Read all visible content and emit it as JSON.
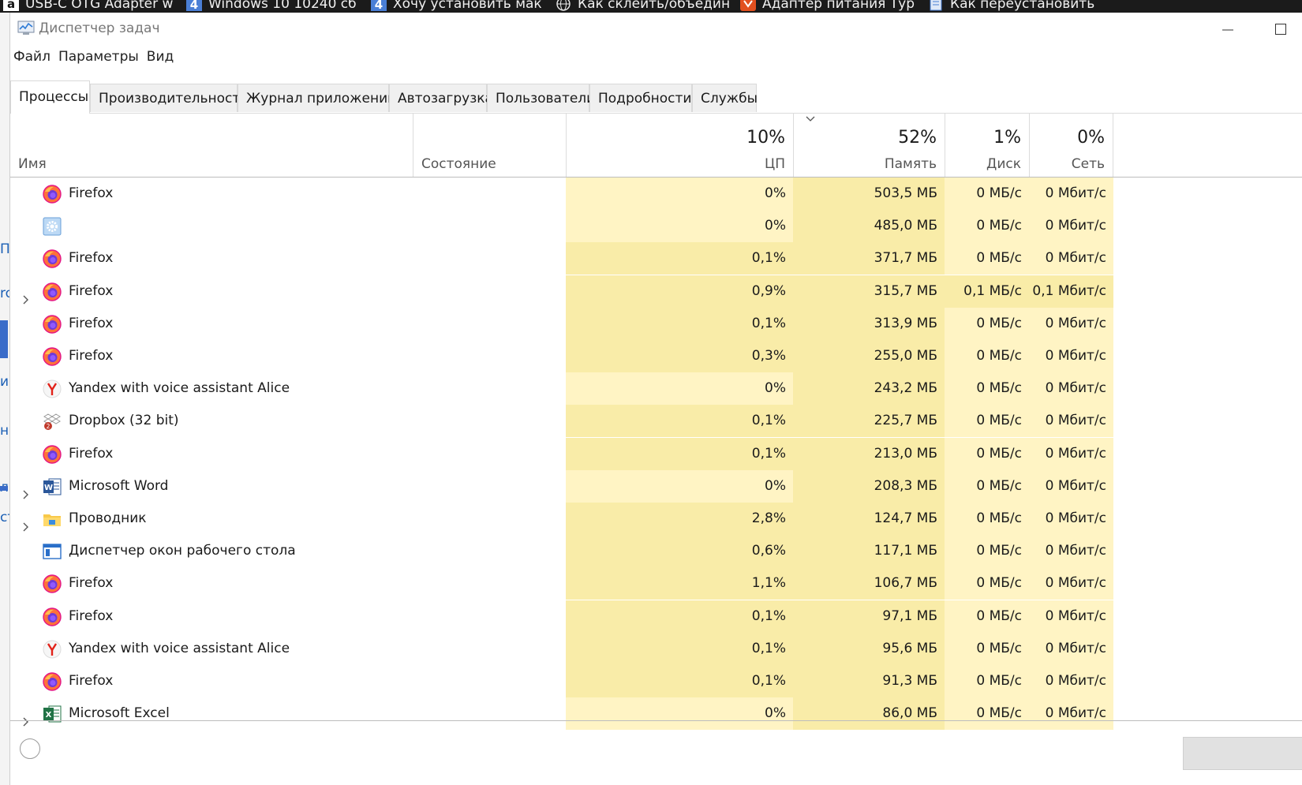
{
  "background": {
    "taskbar_items": [
      {
        "label": "USB-C OTG Adapter w",
        "icon": "amazon-icon"
      },
      {
        "label": "Windows 10 10240 сб",
        "icon": "blue-a-icon"
      },
      {
        "label": "Хочу установить мак",
        "icon": "blue-a-icon"
      },
      {
        "label": "Как склеить/объедин",
        "icon": "globe-icon"
      },
      {
        "label": "Адаптер питания Тур",
        "icon": "orange-tag-icon"
      },
      {
        "label": "Как переустановить",
        "icon": "document-icon"
      }
    ],
    "left_fragments": [
      "П",
      "ro",
      "ие",
      "на",
      "л",
      "ст"
    ]
  },
  "window": {
    "title": "Диспетчер задач",
    "menu": [
      "Файл",
      "Параметры",
      "Вид"
    ],
    "tabs": [
      "Процессы",
      "Производительность",
      "Журнал приложений",
      "Автозагрузка",
      "Пользователи",
      "Подробности",
      "Службы"
    ],
    "active_tab": "Процессы"
  },
  "columns": {
    "name": "Имя",
    "state": "Состояние",
    "cpu": {
      "label": "ЦП",
      "total": "10%"
    },
    "memory": {
      "label": "Память",
      "total": "52%",
      "sorted": true
    },
    "disk": {
      "label": "Диск",
      "total": "1%"
    },
    "network": {
      "label": "Сеть",
      "total": "0%"
    }
  },
  "heat_colors": {
    "light": "#fff4c4",
    "medium": "#f9eca8"
  },
  "processes": [
    {
      "name": "Firefox",
      "icon": "firefox-icon",
      "expandable": false,
      "cpu": "0%",
      "memory": "503,5 МБ",
      "disk": "0 МБ/с",
      "network": "0 Мбит/с"
    },
    {
      "name": "",
      "icon": "gear-app-icon",
      "expandable": false,
      "cpu": "0%",
      "memory": "485,0 МБ",
      "disk": "0 МБ/с",
      "network": "0 Мбит/с"
    },
    {
      "name": "Firefox",
      "icon": "firefox-icon",
      "expandable": false,
      "cpu": "0,1%",
      "memory": "371,7 МБ",
      "disk": "0 МБ/с",
      "network": "0 Мбит/с"
    },
    {
      "name": "Firefox",
      "icon": "firefox-icon",
      "expandable": true,
      "cpu": "0,9%",
      "memory": "315,7 МБ",
      "disk": "0,1 МБ/с",
      "network": "0,1 Мбит/с"
    },
    {
      "name": "Firefox",
      "icon": "firefox-icon",
      "expandable": false,
      "cpu": "0,1%",
      "memory": "313,9 МБ",
      "disk": "0 МБ/с",
      "network": "0 Мбит/с"
    },
    {
      "name": "Firefox",
      "icon": "firefox-icon",
      "expandable": false,
      "cpu": "0,3%",
      "memory": "255,0 МБ",
      "disk": "0 МБ/с",
      "network": "0 Мбит/с"
    },
    {
      "name": "Yandex with voice assistant Alice",
      "icon": "yandex-icon",
      "expandable": false,
      "cpu": "0%",
      "memory": "243,2 МБ",
      "disk": "0 МБ/с",
      "network": "0 Мбит/с"
    },
    {
      "name": "Dropbox (32 bit)",
      "icon": "dropbox-icon",
      "expandable": false,
      "cpu": "0,1%",
      "memory": "225,7 МБ",
      "disk": "0 МБ/с",
      "network": "0 Мбит/с"
    },
    {
      "name": "Firefox",
      "icon": "firefox-icon",
      "expandable": false,
      "cpu": "0,1%",
      "memory": "213,0 МБ",
      "disk": "0 МБ/с",
      "network": "0 Мбит/с"
    },
    {
      "name": "Microsoft Word",
      "icon": "word-icon",
      "expandable": true,
      "cpu": "0%",
      "memory": "208,3 МБ",
      "disk": "0 МБ/с",
      "network": "0 Мбит/с"
    },
    {
      "name": "Проводник",
      "icon": "explorer-icon",
      "expandable": true,
      "cpu": "2,8%",
      "memory": "124,7 МБ",
      "disk": "0 МБ/с",
      "network": "0 Мбит/с"
    },
    {
      "name": "Диспетчер окон рабочего стола",
      "icon": "dwm-icon",
      "expandable": false,
      "cpu": "0,6%",
      "memory": "117,1 МБ",
      "disk": "0 МБ/с",
      "network": "0 Мбит/с"
    },
    {
      "name": "Firefox",
      "icon": "firefox-icon",
      "expandable": false,
      "cpu": "1,1%",
      "memory": "106,7 МБ",
      "disk": "0 МБ/с",
      "network": "0 Мбит/с"
    },
    {
      "name": "Firefox",
      "icon": "firefox-icon",
      "expandable": false,
      "cpu": "0,1%",
      "memory": "97,1 МБ",
      "disk": "0 МБ/с",
      "network": "0 Мбит/с"
    },
    {
      "name": "Yandex with voice assistant Alice",
      "icon": "yandex-icon",
      "expandable": false,
      "cpu": "0,1%",
      "memory": "95,6 МБ",
      "disk": "0 МБ/с",
      "network": "0 Мбит/с"
    },
    {
      "name": "Firefox",
      "icon": "firefox-icon",
      "expandable": false,
      "cpu": "0,1%",
      "memory": "91,3 МБ",
      "disk": "0 МБ/с",
      "network": "0 Мбит/с"
    },
    {
      "name": "Microsoft Excel",
      "icon": "excel-icon",
      "expandable": true,
      "cpu": "0%",
      "memory": "86,0 МБ",
      "disk": "0 МБ/с",
      "network": "0 Мбит/с"
    }
  ]
}
